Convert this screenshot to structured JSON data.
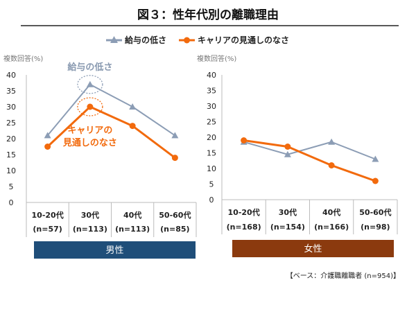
{
  "title": "図３：性年代別の離職理由",
  "legend": {
    "salary": "給与の低さ",
    "career": "キャリアの見通しのなさ"
  },
  "colors": {
    "salary": "#8C9DB5",
    "career": "#F26A0D",
    "male_band": "#1F4E79",
    "female_band": "#8B3A0E",
    "title_rule": "#222222"
  },
  "annotations": {
    "salary": "給与の低さ",
    "career_line1": "キャリアの",
    "career_line2": "見通しのなさ"
  },
  "footnote": "【ベース：介護職離職者 (n=954)】",
  "chart_data": [
    {
      "type": "line",
      "group": "男性",
      "ylabel": "複数回答(%)",
      "ylim": [
        0,
        40
      ],
      "yticks": [
        0,
        5,
        10,
        15,
        20,
        25,
        30,
        35,
        40
      ],
      "categories": [
        "10-20代",
        "30代",
        "40代",
        "50-60代"
      ],
      "counts": [
        "(n=57)",
        "(n=113)",
        "(n=113)",
        "(n=85)"
      ],
      "series": [
        {
          "name": "給与の低さ",
          "values": [
            21,
            37,
            30,
            21
          ]
        },
        {
          "name": "キャリアの見通しのなさ",
          "values": [
            17.5,
            30,
            24,
            14
          ]
        }
      ]
    },
    {
      "type": "line",
      "group": "女性",
      "ylabel": "複数回答(%)",
      "ylim": [
        0,
        40
      ],
      "yticks": [
        0,
        5,
        10,
        15,
        20,
        25,
        30,
        35,
        40
      ],
      "categories": [
        "10-20代",
        "30代",
        "40代",
        "50-60代"
      ],
      "counts": [
        "(n=168)",
        "(n=154)",
        "(n=166)",
        "(n=98)"
      ],
      "series": [
        {
          "name": "給与の低さ",
          "values": [
            18.5,
            14.5,
            18.5,
            13
          ]
        },
        {
          "name": "キャリアの見通しのなさ",
          "values": [
            19,
            17,
            11,
            6
          ]
        }
      ]
    }
  ]
}
